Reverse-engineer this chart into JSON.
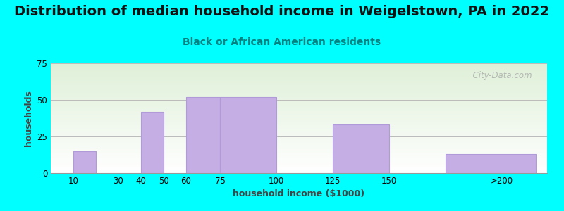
{
  "title": "Distribution of median household income in Weigelstown, PA in 2022",
  "subtitle": "Black or African American residents",
  "xlabel": "household income ($1000)",
  "ylabel": "households",
  "tick_positions": [
    10,
    30,
    40,
    50,
    60,
    75,
    100,
    125,
    150,
    200
  ],
  "tick_labels": [
    "10",
    "30",
    "40",
    "50",
    "60",
    "75",
    "100",
    "125",
    "150",
    ">200"
  ],
  "bar_lefts": [
    10,
    40,
    60,
    75,
    125,
    175
  ],
  "bar_rights": [
    20,
    50,
    75,
    100,
    150,
    215
  ],
  "bar_heights": [
    15,
    42,
    52,
    52,
    33,
    13
  ],
  "bar_color": "#C4AEE4",
  "bar_edge_color": "#B09AD8",
  "background_color": "#00FFFF",
  "plot_bg_top": "#dff0d8",
  "plot_bg_bottom": "#ffffff",
  "ylim": [
    0,
    75
  ],
  "yticks": [
    0,
    25,
    50,
    75
  ],
  "xlim_left": 0,
  "xlim_right": 220,
  "title_fontsize": 14,
  "subtitle_fontsize": 10,
  "axis_label_fontsize": 9,
  "tick_fontsize": 8.5,
  "watermark": "  City-Data.com"
}
